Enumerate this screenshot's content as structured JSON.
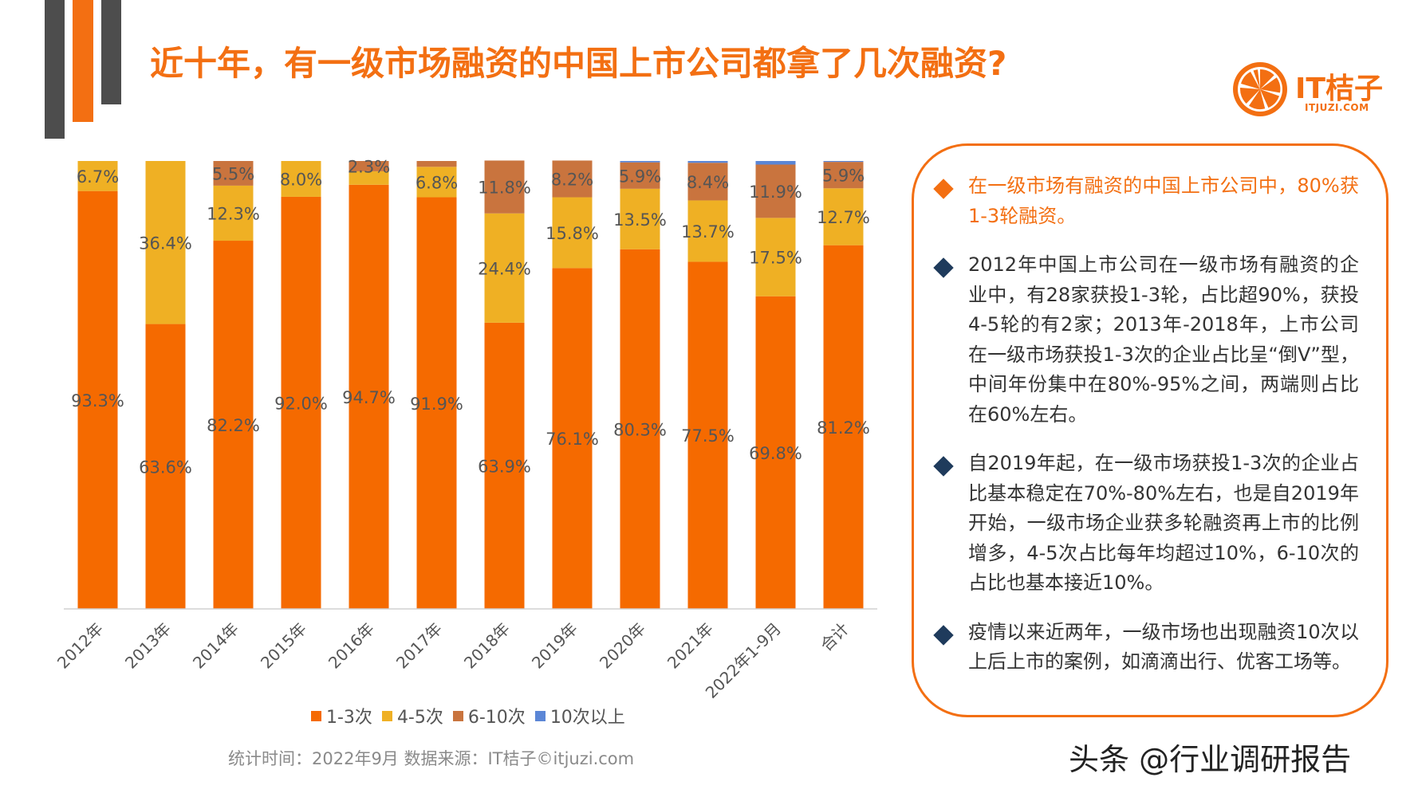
{
  "title": "近十年，有一级市场融资的中国上市公司都拿了几次融资?",
  "logo": {
    "name": "IT桔子",
    "domain": "ITJUZI.COM"
  },
  "colors": {
    "accent": "#f36f12",
    "dark": "#4d4d4d"
  },
  "chart_data": {
    "type": "bar",
    "stacked": true,
    "percent_stacked": true,
    "categories": [
      "2012年",
      "2013年",
      "2014年",
      "2015年",
      "2016年",
      "2017年",
      "2018年",
      "2019年",
      "2020年",
      "2021年",
      "2022年1-9月",
      "合计"
    ],
    "series": [
      {
        "name": "1-3次",
        "color": "#f56a00",
        "values": [
          93.3,
          63.6,
          82.2,
          92.0,
          94.7,
          91.9,
          63.9,
          76.1,
          80.3,
          77.5,
          69.8,
          81.2
        ],
        "labels": [
          "93.3%",
          "63.6%",
          "82.2%",
          "92.0%",
          "94.7%",
          "91.9%",
          "63.9%",
          "76.1%",
          "80.3%",
          "77.5%",
          "69.8%",
          "81.2%"
        ]
      },
      {
        "name": "4-5次",
        "color": "#efb024",
        "values": [
          6.7,
          36.4,
          12.3,
          8.0,
          3.0,
          6.8,
          24.4,
          15.8,
          13.5,
          13.7,
          17.5,
          12.7
        ],
        "labels": [
          "6.7%",
          "36.4%",
          "12.3%",
          "8.0%",
          "",
          "6.8%",
          "24.4%",
          "15.8%",
          "13.5%",
          "13.7%",
          "17.5%",
          "12.7%"
        ]
      },
      {
        "name": "6-10次",
        "color": "#c9743e",
        "values": [
          0,
          0,
          5.5,
          0,
          2.3,
          1.3,
          11.8,
          8.2,
          5.9,
          8.4,
          11.9,
          5.9
        ],
        "labels": [
          "",
          "",
          "5.5%",
          "",
          "2.3%",
          "",
          "11.8%",
          "8.2%",
          "5.9%",
          "8.4%",
          "11.9%",
          "5.9%"
        ]
      },
      {
        "name": "10次以上",
        "color": "#5b86d6",
        "values": [
          0,
          0,
          0,
          0,
          0,
          0,
          0,
          0,
          0.3,
          0.4,
          0.8,
          0.2
        ],
        "labels": [
          "",
          "",
          "",
          "",
          "",
          "",
          "",
          "",
          "",
          "",
          "",
          ""
        ]
      }
    ],
    "ylim": [
      0,
      100
    ],
    "legend_position": "bottom",
    "grid": false
  },
  "footer_note": "统计时间：2022年9月  数据来源：IT桔子©itjuzi.com",
  "bullets": [
    {
      "text": "在一级市场有融资的中国上市公司中，80%获1-3轮融资。",
      "highlight": true
    },
    {
      "text": "2012年中国上市公司在一级市场有融资的企业中，有28家获投1-3轮，占比超90%，获投4-5轮的有2家；2013年-2018年，上市公司在一级市场获投1-3次的企业占比呈“倒V”型，中间年份集中在80%-95%之间，两端则占比在60%左右。",
      "highlight": false
    },
    {
      "text": "自2019年起，在一级市场获投1-3次的企业占比基本稳定在70%-80%左右，也是自2019年开始，一级市场企业获多轮融资再上市的比例增多，4-5次占比每年均超过10%，6-10次的占比也基本接近10%。",
      "highlight": false
    },
    {
      "text": "疫情以来近两年，一级市场也出现融资10次以上后上市的案例，如滴滴出行、优客工场等。",
      "highlight": false
    }
  ],
  "watermark": "头条 @行业调研报告"
}
